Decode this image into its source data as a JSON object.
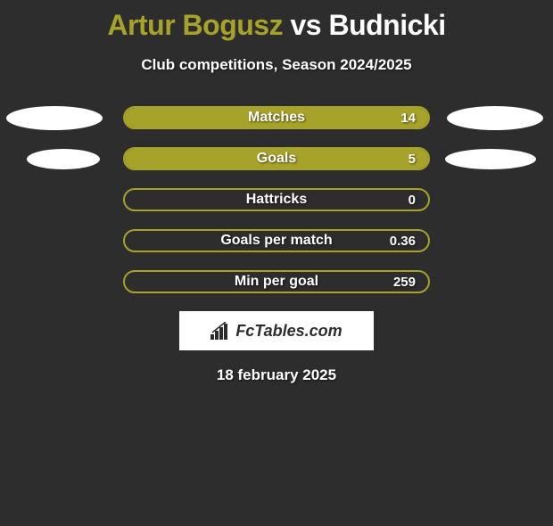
{
  "background_color": "#2d2d2d",
  "bar_border_color": "#a6a22a",
  "bar_fill_color": "#a6a22a",
  "ellipse_color": "#ffffff",
  "text_color": "#ffffff",
  "title": {
    "prefix": "Artur Bogusz",
    "vs": " vs ",
    "suffix": "Budnicki",
    "fontsize": 32,
    "accent_color": "#a6a22a"
  },
  "subtitle": "Club competitions, Season 2024/2025",
  "stats": [
    {
      "label": "Matches",
      "value": "14",
      "fill_pct": 100,
      "left_ellipse": true,
      "right_ellipse": true,
      "ellipse_row": 1
    },
    {
      "label": "Goals",
      "value": "5",
      "fill_pct": 100,
      "left_ellipse": true,
      "right_ellipse": true,
      "ellipse_row": 2
    },
    {
      "label": "Hattricks",
      "value": "0",
      "fill_pct": 0,
      "left_ellipse": false,
      "right_ellipse": false
    },
    {
      "label": "Goals per match",
      "value": "0.36",
      "fill_pct": 0,
      "left_ellipse": false,
      "right_ellipse": false
    },
    {
      "label": "Min per goal",
      "value": "259",
      "fill_pct": 0,
      "left_ellipse": false,
      "right_ellipse": false
    }
  ],
  "brand": "FcTables.com",
  "date": "18 february 2025"
}
